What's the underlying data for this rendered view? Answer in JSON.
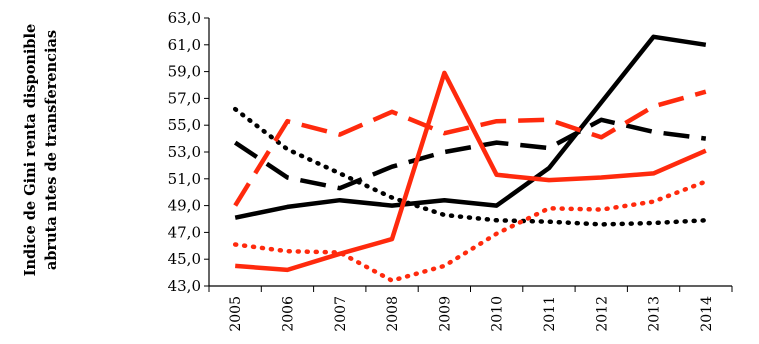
{
  "chart_data": {
    "type": "line",
    "title": "",
    "ylabel_lines": [
      "Indice de Gini renta disponible",
      "abruta ntes de transferencias"
    ],
    "xlabel": "",
    "ylim": [
      43,
      63
    ],
    "yticks": [
      "43,0",
      "45,0",
      "47,0",
      "49,0",
      "51,0",
      "53,0",
      "55,0",
      "57,0",
      "59,0",
      "61,0",
      "63,0"
    ],
    "x": [
      "2005",
      "2006",
      "2007",
      "2008",
      "2009",
      "2010",
      "2011",
      "2012",
      "2013",
      "2014"
    ],
    "legend": "none",
    "grid": false,
    "series": [
      {
        "color": "#000000",
        "dash": "solid",
        "values": [
          48.1,
          48.9,
          49.4,
          49.0,
          49.4,
          49.0,
          51.8,
          56.7,
          61.6,
          61.0
        ]
      },
      {
        "color": "#000000",
        "dash": "dashed",
        "values": [
          53.7,
          51.1,
          50.3,
          51.9,
          53.0,
          53.7,
          53.3,
          55.4,
          54.5,
          54.0
        ]
      },
      {
        "color": "#000000",
        "dash": "dotted",
        "values": [
          56.2,
          53.2,
          51.4,
          49.6,
          48.3,
          47.9,
          47.8,
          47.6,
          47.7,
          47.9
        ]
      },
      {
        "color": "#ff2a0d",
        "dash": "solid",
        "values": [
          44.5,
          44.2,
          45.4,
          46.5,
          58.9,
          51.3,
          50.9,
          51.1,
          51.4,
          53.1
        ]
      },
      {
        "color": "#ff2a0d",
        "dash": "dashed",
        "values": [
          49.0,
          55.3,
          54.3,
          56.0,
          54.4,
          55.3,
          55.4,
          54.1,
          56.4,
          57.5
        ]
      },
      {
        "color": "#ff2a0d",
        "dash": "dotted",
        "values": [
          46.1,
          45.6,
          45.5,
          43.4,
          44.5,
          46.9,
          48.8,
          48.7,
          49.3,
          50.8
        ]
      }
    ]
  }
}
